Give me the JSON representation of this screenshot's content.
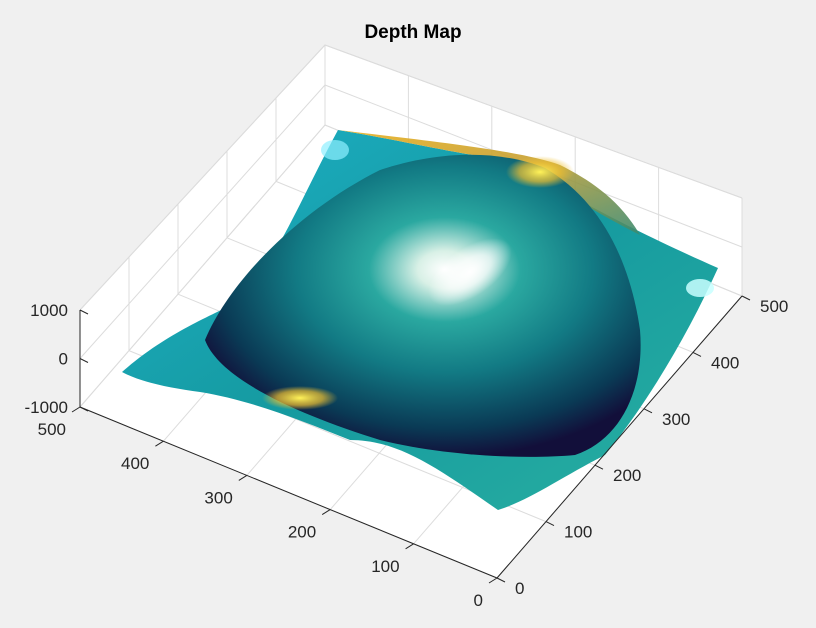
{
  "chart_data": {
    "type": "surface",
    "title": "Depth Map",
    "xlabel": "",
    "ylabel": "",
    "zlabel": "",
    "xlim": [
      0,
      500
    ],
    "ylim": [
      0,
      500
    ],
    "zlim": [
      -1000,
      1000
    ],
    "x_ticks": [
      "0",
      "100",
      "200",
      "300",
      "400",
      "500"
    ],
    "y_ticks": [
      "0",
      "100",
      "200",
      "300",
      "400",
      "500"
    ],
    "z_ticks": [
      "-1000",
      "0",
      "1000"
    ],
    "grid": true,
    "colormap": "parula",
    "colors": {
      "background": "#f0f0f0",
      "axes_pane": "#ffffff",
      "grid": "#dcdcdc",
      "axis": "#262626"
    },
    "surface_description_values": {
      "corner_heights": [
        0,
        0,
        0,
        0
      ],
      "dome_peak_z": 900,
      "dome_center_xy": [
        250,
        250
      ],
      "dome_radius": 210
    }
  }
}
